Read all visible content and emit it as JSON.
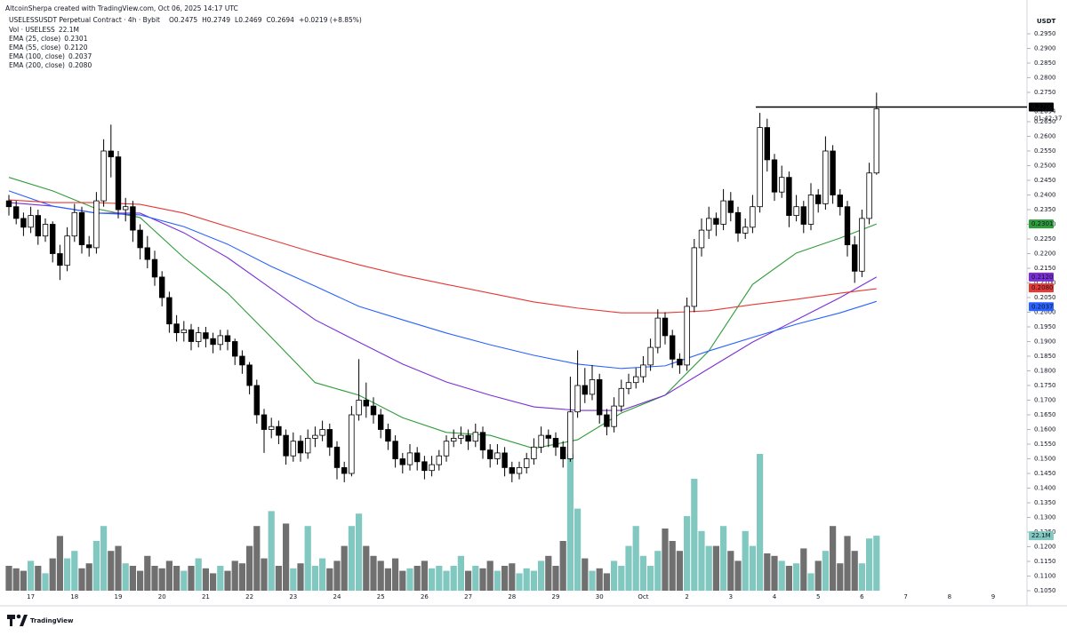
{
  "header": {
    "credit": "AltcoinSherpa created with TradingView.com, Oct 06, 2025 14:17 UTC",
    "symbol": "USELESSUSDT Perpetual Contract · 4h · Bybit",
    "ohlc": [
      "O0.2475",
      "H0.2749",
      "L0.2469",
      "C0.2694",
      "+0.0219 (+8.85%)"
    ]
  },
  "footer": {
    "brand": "TradingView"
  },
  "chart_data": {
    "type": "candlestick",
    "currency": "USDT",
    "ylim": [
      0.105,
      0.305
    ],
    "yticks": [
      {
        "value": 0.105,
        "label": "0.1050"
      },
      {
        "value": 0.11,
        "label": "0.1100"
      },
      {
        "value": 0.115,
        "label": "0.1150"
      },
      {
        "value": 0.12,
        "label": "0.1200"
      },
      {
        "value": 0.125,
        "label": "0.1250"
      },
      {
        "value": 0.13,
        "label": "0.1300"
      },
      {
        "value": 0.135,
        "label": "0.1350"
      },
      {
        "value": 0.14,
        "label": "0.1400"
      },
      {
        "value": 0.145,
        "label": "0.1450"
      },
      {
        "value": 0.15,
        "label": "0.1500"
      },
      {
        "value": 0.155,
        "label": "0.1550"
      },
      {
        "value": 0.16,
        "label": "0.1600"
      },
      {
        "value": 0.165,
        "label": "0.1650"
      },
      {
        "value": 0.17,
        "label": "0.1700"
      },
      {
        "value": 0.175,
        "label": "0.1750"
      },
      {
        "value": 0.18,
        "label": "0.1800"
      },
      {
        "value": 0.185,
        "label": "0.1850"
      },
      {
        "value": 0.19,
        "label": "0.1900"
      },
      {
        "value": 0.195,
        "label": "0.1950"
      },
      {
        "value": 0.2,
        "label": "0.2000"
      },
      {
        "value": 0.205,
        "label": "0.2050"
      },
      {
        "value": 0.21,
        "label": "0.2100"
      },
      {
        "value": 0.215,
        "label": "0.2150"
      },
      {
        "value": 0.22,
        "label": "0.2200"
      },
      {
        "value": 0.225,
        "label": "0.2250"
      },
      {
        "value": 0.23,
        "label": "0.2300"
      },
      {
        "value": 0.235,
        "label": "0.2350"
      },
      {
        "value": 0.24,
        "label": "0.2400"
      },
      {
        "value": 0.245,
        "label": "0.2450"
      },
      {
        "value": 0.25,
        "label": "0.2500"
      },
      {
        "value": 0.255,
        "label": "0.2550"
      },
      {
        "value": 0.26,
        "label": "0.2600"
      },
      {
        "value": 0.265,
        "label": "0.2650"
      },
      {
        "value": 0.275,
        "label": "0.2750"
      },
      {
        "value": 0.28,
        "label": "0.2800"
      },
      {
        "value": 0.285,
        "label": "0.2850"
      },
      {
        "value": 0.29,
        "label": "0.2900"
      },
      {
        "value": 0.295,
        "label": "0.2950"
      }
    ],
    "x_labels": [
      "17",
      "18",
      "19",
      "20",
      "21",
      "22",
      "23",
      "24",
      "25",
      "26",
      "27",
      "28",
      "29",
      "30",
      "Oct",
      "2",
      "3",
      "4",
      "5",
      "6",
      "7",
      "8",
      "9"
    ],
    "up_color": "#ffffff",
    "down_color": "#000000",
    "up_volume_color": "#80c8c0",
    "down_volume_color": "#707070",
    "candles": [
      [
        0.238,
        0.24,
        0.233,
        0.236
      ],
      [
        0.236,
        0.238,
        0.23,
        0.232
      ],
      [
        0.232,
        0.234,
        0.226,
        0.229
      ],
      [
        0.229,
        0.236,
        0.227,
        0.233
      ],
      [
        0.233,
        0.235,
        0.223,
        0.226
      ],
      [
        0.226,
        0.232,
        0.224,
        0.23
      ],
      [
        0.23,
        0.231,
        0.217,
        0.22
      ],
      [
        0.22,
        0.223,
        0.211,
        0.216
      ],
      [
        0.216,
        0.229,
        0.214,
        0.226
      ],
      [
        0.226,
        0.237,
        0.224,
        0.234
      ],
      [
        0.234,
        0.236,
        0.22,
        0.223
      ],
      [
        0.223,
        0.226,
        0.219,
        0.222
      ],
      [
        0.222,
        0.241,
        0.22,
        0.238
      ],
      [
        0.238,
        0.259,
        0.236,
        0.255
      ],
      [
        0.255,
        0.264,
        0.246,
        0.253
      ],
      [
        0.253,
        0.255,
        0.232,
        0.235
      ],
      [
        0.235,
        0.239,
        0.231,
        0.236
      ],
      [
        0.236,
        0.238,
        0.224,
        0.228
      ],
      [
        0.228,
        0.23,
        0.218,
        0.222
      ],
      [
        0.222,
        0.226,
        0.215,
        0.218
      ],
      [
        0.218,
        0.221,
        0.209,
        0.212
      ],
      [
        0.212,
        0.214,
        0.202,
        0.205
      ],
      [
        0.205,
        0.207,
        0.193,
        0.196
      ],
      [
        0.196,
        0.199,
        0.19,
        0.193
      ],
      [
        0.193,
        0.197,
        0.19,
        0.194
      ],
      [
        0.194,
        0.196,
        0.187,
        0.19
      ],
      [
        0.19,
        0.195,
        0.188,
        0.193
      ],
      [
        0.193,
        0.195,
        0.188,
        0.191
      ],
      [
        0.191,
        0.193,
        0.186,
        0.189
      ],
      [
        0.189,
        0.194,
        0.187,
        0.192
      ],
      [
        0.192,
        0.194,
        0.187,
        0.19
      ],
      [
        0.19,
        0.191,
        0.182,
        0.185
      ],
      [
        0.185,
        0.187,
        0.179,
        0.182
      ],
      [
        0.182,
        0.183,
        0.172,
        0.175
      ],
      [
        0.175,
        0.177,
        0.162,
        0.165
      ],
      [
        0.165,
        0.167,
        0.152,
        0.16
      ],
      [
        0.16,
        0.164,
        0.157,
        0.161
      ],
      [
        0.161,
        0.163,
        0.155,
        0.158
      ],
      [
        0.158,
        0.16,
        0.148,
        0.151
      ],
      [
        0.151,
        0.159,
        0.149,
        0.156
      ],
      [
        0.156,
        0.158,
        0.149,
        0.152
      ],
      [
        0.152,
        0.16,
        0.15,
        0.157
      ],
      [
        0.157,
        0.161,
        0.154,
        0.158
      ],
      [
        0.158,
        0.163,
        0.156,
        0.16
      ],
      [
        0.16,
        0.162,
        0.151,
        0.154
      ],
      [
        0.154,
        0.156,
        0.143,
        0.147
      ],
      [
        0.147,
        0.149,
        0.142,
        0.145
      ],
      [
        0.145,
        0.168,
        0.144,
        0.165
      ],
      [
        0.165,
        0.184,
        0.163,
        0.17
      ],
      [
        0.17,
        0.176,
        0.164,
        0.168
      ],
      [
        0.168,
        0.171,
        0.162,
        0.165
      ],
      [
        0.165,
        0.167,
        0.157,
        0.16
      ],
      [
        0.16,
        0.162,
        0.153,
        0.156
      ],
      [
        0.156,
        0.158,
        0.147,
        0.15
      ],
      [
        0.15,
        0.152,
        0.145,
        0.148
      ],
      [
        0.148,
        0.155,
        0.146,
        0.152
      ],
      [
        0.152,
        0.154,
        0.146,
        0.149
      ],
      [
        0.149,
        0.151,
        0.143,
        0.146
      ],
      [
        0.146,
        0.151,
        0.144,
        0.148
      ],
      [
        0.148,
        0.153,
        0.146,
        0.151
      ],
      [
        0.151,
        0.158,
        0.149,
        0.156
      ],
      [
        0.156,
        0.16,
        0.154,
        0.157
      ],
      [
        0.157,
        0.161,
        0.155,
        0.158
      ],
      [
        0.158,
        0.16,
        0.153,
        0.156
      ],
      [
        0.156,
        0.162,
        0.154,
        0.159
      ],
      [
        0.159,
        0.161,
        0.15,
        0.153
      ],
      [
        0.153,
        0.155,
        0.147,
        0.15
      ],
      [
        0.15,
        0.155,
        0.148,
        0.152
      ],
      [
        0.152,
        0.154,
        0.144,
        0.147
      ],
      [
        0.147,
        0.149,
        0.142,
        0.145
      ],
      [
        0.145,
        0.149,
        0.143,
        0.147
      ],
      [
        0.147,
        0.152,
        0.145,
        0.15
      ],
      [
        0.15,
        0.157,
        0.148,
        0.154
      ],
      [
        0.154,
        0.161,
        0.152,
        0.158
      ],
      [
        0.158,
        0.16,
        0.154,
        0.157
      ],
      [
        0.157,
        0.159,
        0.151,
        0.154
      ],
      [
        0.154,
        0.156,
        0.147,
        0.15
      ],
      [
        0.15,
        0.178,
        0.149,
        0.166
      ],
      [
        0.166,
        0.187,
        0.164,
        0.175
      ],
      [
        0.175,
        0.181,
        0.169,
        0.172
      ],
      [
        0.172,
        0.182,
        0.17,
        0.177
      ],
      [
        0.177,
        0.179,
        0.162,
        0.165
      ],
      [
        0.165,
        0.167,
        0.158,
        0.161
      ],
      [
        0.161,
        0.171,
        0.159,
        0.168
      ],
      [
        0.168,
        0.177,
        0.166,
        0.174
      ],
      [
        0.174,
        0.179,
        0.172,
        0.176
      ],
      [
        0.176,
        0.181,
        0.174,
        0.178
      ],
      [
        0.178,
        0.185,
        0.176,
        0.182
      ],
      [
        0.182,
        0.191,
        0.18,
        0.188
      ],
      [
        0.188,
        0.201,
        0.186,
        0.198
      ],
      [
        0.198,
        0.2,
        0.189,
        0.192
      ],
      [
        0.192,
        0.194,
        0.181,
        0.184
      ],
      [
        0.184,
        0.186,
        0.179,
        0.182
      ],
      [
        0.182,
        0.205,
        0.18,
        0.202
      ],
      [
        0.202,
        0.225,
        0.2,
        0.222
      ],
      [
        0.222,
        0.232,
        0.219,
        0.228
      ],
      [
        0.228,
        0.236,
        0.225,
        0.232
      ],
      [
        0.232,
        0.234,
        0.226,
        0.23
      ],
      [
        0.23,
        0.242,
        0.228,
        0.238
      ],
      [
        0.238,
        0.241,
        0.231,
        0.234
      ],
      [
        0.234,
        0.236,
        0.224,
        0.227
      ],
      [
        0.227,
        0.232,
        0.225,
        0.229
      ],
      [
        0.229,
        0.24,
        0.227,
        0.236
      ],
      [
        0.236,
        0.268,
        0.234,
        0.263
      ],
      [
        0.263,
        0.266,
        0.248,
        0.252
      ],
      [
        0.252,
        0.254,
        0.238,
        0.241
      ],
      [
        0.241,
        0.25,
        0.239,
        0.246
      ],
      [
        0.246,
        0.248,
        0.229,
        0.233
      ],
      [
        0.233,
        0.24,
        0.231,
        0.236
      ],
      [
        0.236,
        0.238,
        0.227,
        0.23
      ],
      [
        0.23,
        0.244,
        0.228,
        0.24
      ],
      [
        0.24,
        0.242,
        0.234,
        0.237
      ],
      [
        0.237,
        0.26,
        0.235,
        0.255
      ],
      [
        0.255,
        0.257,
        0.237,
        0.24
      ],
      [
        0.24,
        0.242,
        0.233,
        0.236
      ],
      [
        0.236,
        0.238,
        0.219,
        0.223
      ],
      [
        0.223,
        0.226,
        0.21,
        0.214
      ],
      [
        0.214,
        0.235,
        0.212,
        0.232
      ],
      [
        0.232,
        0.251,
        0.23,
        0.2475
      ],
      [
        0.2475,
        0.2749,
        0.2469,
        0.2694
      ]
    ],
    "last_price_label": "0.2694",
    "countdown": "01:42:37",
    "level": {
      "value": 0.27,
      "label": "0.2700",
      "color": "#000000"
    },
    "volume": {
      "name": "Vol · USELESS",
      "value_label": "22.1M",
      "values": [
        10,
        9,
        8,
        12,
        10,
        7,
        13,
        22,
        13,
        16,
        9,
        11,
        20,
        26,
        16,
        18,
        11,
        10,
        8,
        14,
        10,
        9,
        12,
        10,
        8,
        10,
        13,
        9,
        7,
        10,
        8,
        12,
        11,
        18,
        26,
        13,
        32,
        10,
        27,
        9,
        11,
        26,
        10,
        13,
        9,
        12,
        18,
        26,
        31,
        18,
        14,
        12,
        9,
        13,
        8,
        9,
        10,
        12,
        9,
        10,
        8,
        10,
        14,
        8,
        10,
        9,
        12,
        8,
        10,
        11,
        7,
        9,
        8,
        12,
        14,
        10,
        20,
        55,
        33,
        13,
        8,
        9,
        7,
        12,
        10,
        18,
        26,
        14,
        10,
        16,
        25,
        20,
        16,
        30,
        45,
        24,
        18,
        18,
        26,
        16,
        12,
        24,
        18,
        55,
        15,
        14,
        12,
        10,
        11,
        17,
        7,
        12,
        16,
        26,
        11,
        22,
        16,
        11,
        21,
        22.1
      ]
    },
    "ema_x": [
      0,
      6,
      12,
      18,
      24,
      30,
      36,
      42,
      48,
      54,
      60,
      66,
      72,
      78,
      84,
      90,
      96,
      102,
      108,
      114,
      119
    ],
    "emas": [
      {
        "name": "EMA (25, close)",
        "color": "#2e9c3a",
        "value_label": "0.2301",
        "values": [
          0.246,
          0.2414,
          0.2353,
          0.2323,
          0.2186,
          0.2065,
          0.1914,
          0.176,
          0.1717,
          0.164,
          0.159,
          0.158,
          0.1535,
          0.1565,
          0.1656,
          0.1717,
          0.1868,
          0.2095,
          0.2202,
          0.2253,
          0.2301
        ]
      },
      {
        "name": "EMA (55, close)",
        "color": "#7b2fd6",
        "value_label": "0.2120",
        "values": [
          0.2374,
          0.2362,
          0.2338,
          0.2338,
          0.2271,
          0.2186,
          0.208,
          0.1974,
          0.1898,
          0.1823,
          0.1762,
          0.1717,
          0.1677,
          0.1665,
          0.1665,
          0.1717,
          0.1808,
          0.1898,
          0.1974,
          0.205,
          0.212
        ]
      },
      {
        "name": "EMA (100, close)",
        "color": "#2962ff",
        "value_label": "0.2037",
        "values": [
          0.2414,
          0.2362,
          0.2338,
          0.2332,
          0.2292,
          0.2232,
          0.2156,
          0.2089,
          0.202,
          0.1974,
          0.1929,
          0.1889,
          0.1853,
          0.1823,
          0.1808,
          0.1817,
          0.1868,
          0.1914,
          0.1959,
          0.1998,
          0.2037
        ]
      },
      {
        "name": "EMA (200, close)",
        "color": "#e53935",
        "value_label": "0.2080",
        "values": [
          0.2383,
          0.2374,
          0.2374,
          0.2368,
          0.2338,
          0.2292,
          0.2247,
          0.2202,
          0.2162,
          0.2126,
          0.2095,
          0.2065,
          0.2035,
          0.2014,
          0.1998,
          0.1998,
          0.2005,
          0.2026,
          0.2044,
          0.2065,
          0.208
        ]
      }
    ]
  }
}
